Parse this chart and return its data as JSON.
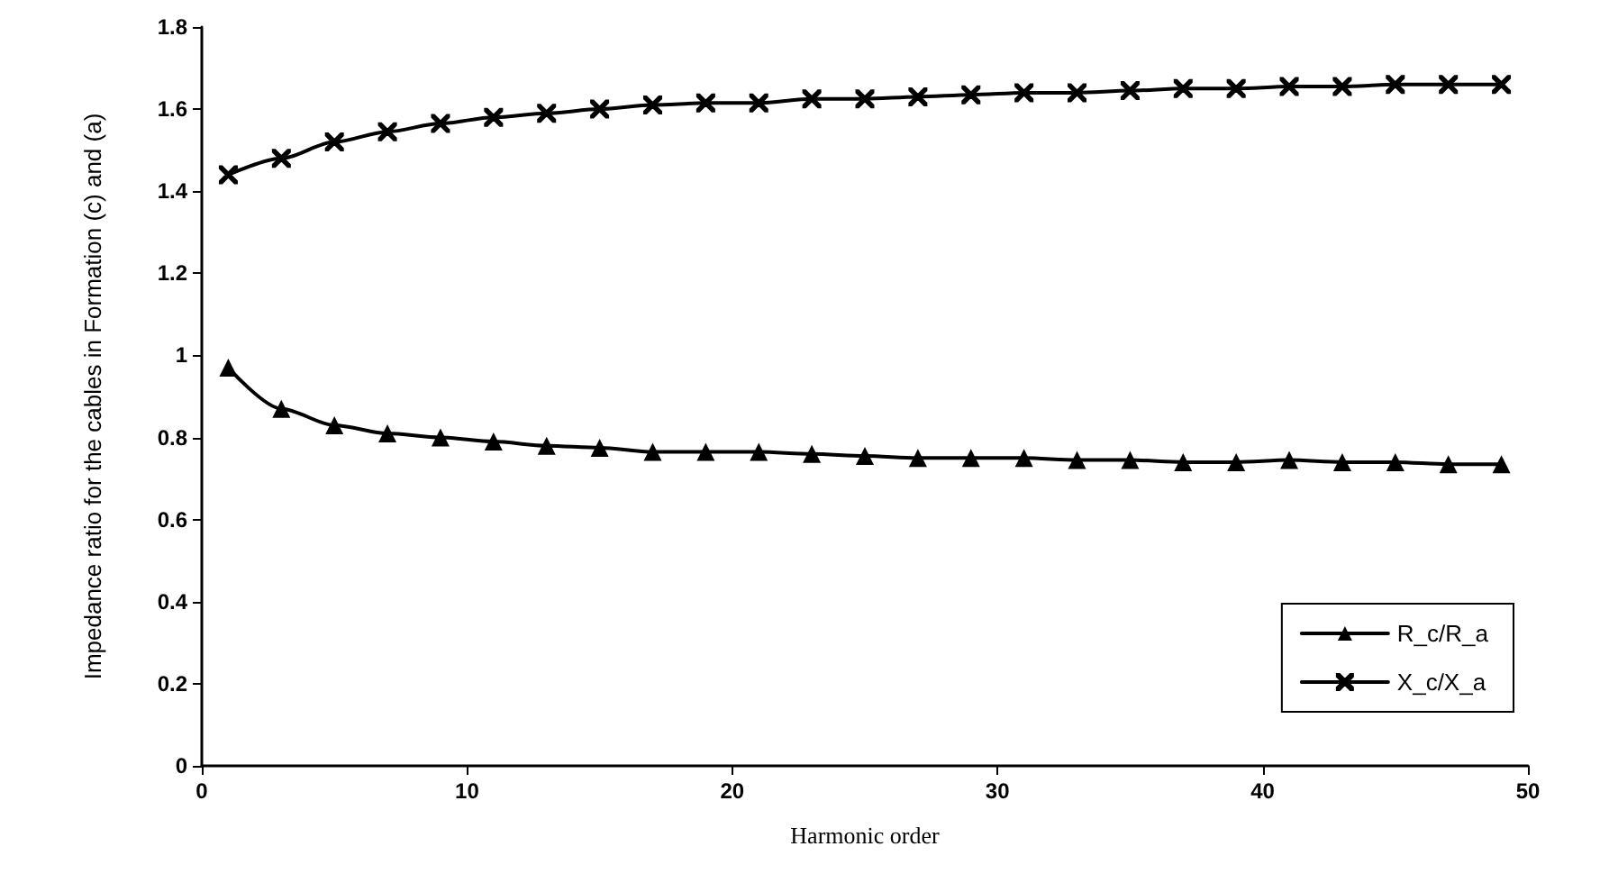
{
  "chart_data": {
    "type": "line",
    "xlabel": "Harmonic order",
    "ylabel": "Impedance ratio for the cables in Formation (c) and (a)",
    "x": [
      1,
      3,
      5,
      7,
      9,
      11,
      13,
      15,
      17,
      19,
      21,
      23,
      25,
      27,
      29,
      31,
      33,
      35,
      37,
      39,
      41,
      43,
      45,
      47,
      49
    ],
    "series": [
      {
        "name": "R_c/R_a",
        "color": "#000000",
        "marker": "triangle",
        "values": [
          0.97,
          0.87,
          0.83,
          0.81,
          0.8,
          0.79,
          0.78,
          0.775,
          0.765,
          0.765,
          0.765,
          0.76,
          0.755,
          0.75,
          0.75,
          0.75,
          0.745,
          0.745,
          0.74,
          0.74,
          0.745,
          0.74,
          0.74,
          0.735,
          0.735
        ]
      },
      {
        "name": "X_c/X_a",
        "color": "#000000",
        "marker": "cross",
        "values": [
          1.44,
          1.48,
          1.52,
          1.545,
          1.565,
          1.58,
          1.59,
          1.6,
          1.61,
          1.615,
          1.615,
          1.625,
          1.625,
          1.63,
          1.635,
          1.64,
          1.64,
          1.645,
          1.65,
          1.65,
          1.655,
          1.655,
          1.66,
          1.66,
          1.66
        ]
      }
    ],
    "xlim": [
      0,
      50
    ],
    "xticks": [
      0,
      10,
      20,
      30,
      40,
      50
    ],
    "ylim": [
      0,
      1.8
    ],
    "yticks": [
      0,
      0.2,
      0.4,
      0.6,
      0.8,
      1,
      1.2,
      1.4,
      1.6,
      1.8
    ],
    "legend": "bottom right",
    "grid": false,
    "line_style": "solid"
  }
}
